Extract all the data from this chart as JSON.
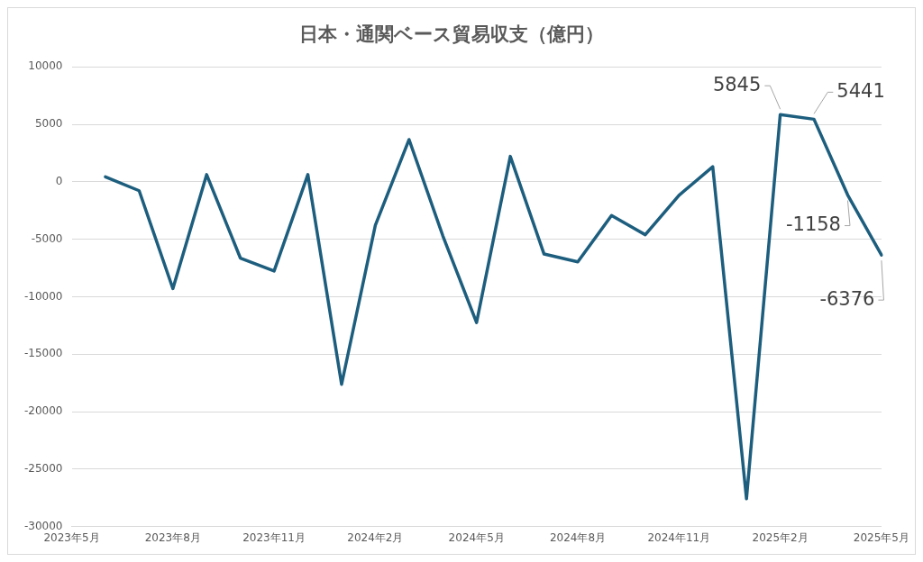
{
  "chart_data": {
    "type": "line",
    "title": "日本・通関ベース貿易収支（億円）",
    "categories": [
      "2023年5月",
      null,
      null,
      "2023年8月",
      null,
      null,
      "2023年11月",
      null,
      null,
      "2024年2月",
      null,
      null,
      "2024年5月",
      null,
      null,
      "2024年8月",
      null,
      null,
      "2024年11月",
      null,
      null,
      "2025年2月",
      null,
      null,
      "2025年5月"
    ],
    "series": [
      {
        "color": "#1d5e7e",
        "values": [
          null,
          430,
          -780,
          -9300,
          620,
          -6640,
          -7770,
          620,
          -17630,
          -3790,
          3670,
          -4700,
          -12250,
          2210,
          -6290,
          -6970,
          -2940,
          -4610,
          -1180,
          1310,
          -27590,
          5845,
          5441,
          -1158,
          -6376
        ],
        "value_labels": [
          null,
          null,
          null,
          null,
          null,
          null,
          null,
          null,
          null,
          null,
          null,
          null,
          null,
          null,
          null,
          null,
          null,
          null,
          null,
          null,
          null,
          "5845",
          "5441",
          "-1158",
          "-6376"
        ]
      }
    ],
    "ylim": [
      -30000,
      10000
    ],
    "yticks": [
      -30000,
      -25000,
      -20000,
      -15000,
      -10000,
      -5000,
      0,
      5000,
      10000
    ],
    "grid": "y",
    "legend": false,
    "marker": "none",
    "line_style": "solid"
  }
}
